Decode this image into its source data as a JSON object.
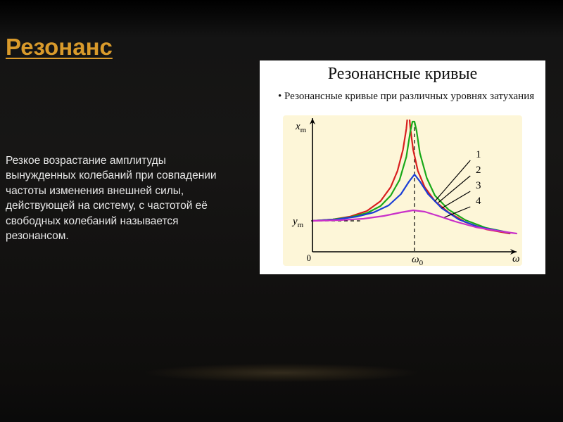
{
  "slide": {
    "title": "Резонанс",
    "body": "Резкое возрастание амплитуды вынужденных колебаний при совпадении частоты изменения внешней силы, действующей на систему, с частотой её свободных колебаний называется резонансом."
  },
  "panel": {
    "title": "Резонансные кривые",
    "subtitle": "Резонансные кривые при различных уровнях затухания"
  },
  "chart": {
    "type": "line",
    "background": "#fdf6d8",
    "axis_color": "#000000",
    "axis_width": 1.6,
    "x_axis_label": "ω",
    "y_axis_label": "x",
    "y_axis_label_sub": "m",
    "resonance_marker": "ω",
    "resonance_marker_sub": "0",
    "y_baseline_label": "y",
    "y_baseline_label_sub": "m",
    "origin_label": "0",
    "xlim": [
      0,
      300
    ],
    "ylim": [
      0,
      180
    ],
    "resonance_x": 150,
    "y_baseline": 44,
    "dashed_line_color": "#000000",
    "dashed_pattern": "5,4",
    "curve_width": 2.2,
    "leader_color": "#000000",
    "leader_width": 1.2,
    "curves": [
      {
        "id": 1,
        "label": "1",
        "color": "#d81e1e",
        "points": [
          [
            0,
            44
          ],
          [
            30,
            46
          ],
          [
            55,
            50
          ],
          [
            80,
            58
          ],
          [
            100,
            72
          ],
          [
            115,
            92
          ],
          [
            125,
            115
          ],
          [
            133,
            145
          ],
          [
            138,
            175
          ],
          [
            140,
            195
          ],
          [
            142,
            195
          ],
          [
            144,
            175
          ],
          [
            148,
            145
          ],
          [
            155,
            115
          ],
          [
            165,
            92
          ],
          [
            180,
            72
          ],
          [
            200,
            56
          ],
          [
            225,
            42
          ],
          [
            255,
            32
          ],
          [
            290,
            26
          ]
        ],
        "clip_top": true,
        "leader_from": [
          180,
          72
        ],
        "leader_to": [
          232,
          130
        ],
        "label_at": [
          240,
          134
        ]
      },
      {
        "id": 2,
        "label": "2",
        "color": "#18a818",
        "points": [
          [
            0,
            44
          ],
          [
            30,
            46
          ],
          [
            55,
            49
          ],
          [
            80,
            55
          ],
          [
            100,
            65
          ],
          [
            115,
            80
          ],
          [
            128,
            102
          ],
          [
            138,
            135
          ],
          [
            144,
            172
          ],
          [
            147,
            185
          ],
          [
            150,
            185
          ],
          [
            153,
            172
          ],
          [
            158,
            140
          ],
          [
            168,
            105
          ],
          [
            180,
            80
          ],
          [
            200,
            60
          ],
          [
            225,
            45
          ],
          [
            255,
            34
          ],
          [
            290,
            27
          ]
        ],
        "clip_top": true,
        "leader_from": [
          185,
          70
        ],
        "leader_to": [
          232,
          108
        ],
        "label_at": [
          240,
          112
        ]
      },
      {
        "id": 3,
        "label": "3",
        "color": "#1b3fd6",
        "points": [
          [
            0,
            44
          ],
          [
            35,
            46
          ],
          [
            65,
            50
          ],
          [
            90,
            56
          ],
          [
            112,
            66
          ],
          [
            130,
            82
          ],
          [
            142,
            100
          ],
          [
            150,
            110
          ],
          [
            158,
            100
          ],
          [
            170,
            82
          ],
          [
            190,
            62
          ],
          [
            215,
            46
          ],
          [
            245,
            35
          ],
          [
            290,
            27
          ]
        ],
        "leader_from": [
          190,
          62
        ],
        "leader_to": [
          232,
          86
        ],
        "label_at": [
          240,
          90
        ]
      },
      {
        "id": 4,
        "label": "4",
        "color": "#c930c9",
        "points": [
          [
            0,
            44
          ],
          [
            40,
            45
          ],
          [
            75,
            47
          ],
          [
            105,
            51
          ],
          [
            130,
            56
          ],
          [
            148,
            59
          ],
          [
            165,
            57
          ],
          [
            185,
            51
          ],
          [
            210,
            43
          ],
          [
            240,
            35
          ],
          [
            270,
            30
          ],
          [
            300,
            26
          ]
        ],
        "leader_from": [
          194,
          49
        ],
        "leader_to": [
          232,
          64
        ],
        "label_at": [
          240,
          68
        ]
      }
    ]
  }
}
